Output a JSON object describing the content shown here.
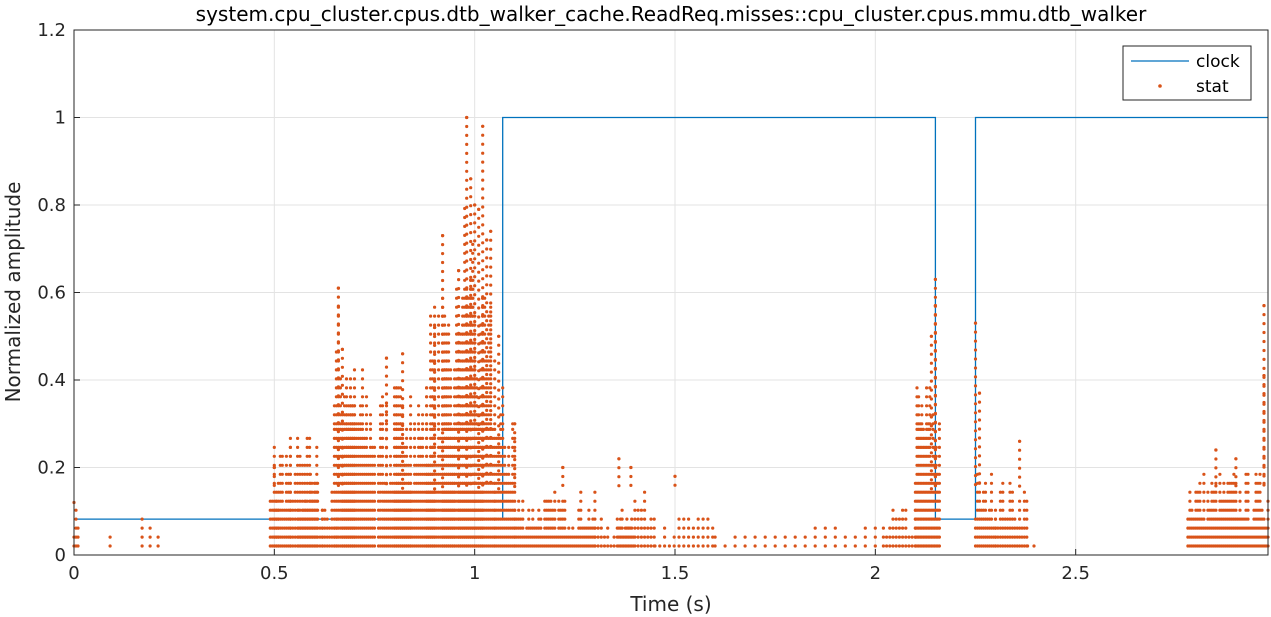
{
  "chart_data": {
    "type": "line",
    "title": "system.cpu_cluster.cpus.dtb_walker_cache.ReadReq.misses::cpu_cluster.cpus.mmu.dtb_walker",
    "xlabel": "Time (s)",
    "ylabel": "Normalized amplitude",
    "xlim": [
      0,
      2.98
    ],
    "ylim": [
      0,
      1.2
    ],
    "xticks": [
      0,
      0.5,
      1,
      1.5,
      2,
      2.5
    ],
    "xtick_labels": [
      "0",
      "0.5",
      "1",
      "1.5",
      "2",
      "2.5"
    ],
    "yticks": [
      0,
      0.2,
      0.4,
      0.6,
      0.8,
      1,
      1.2
    ],
    "ytick_labels": [
      "0",
      "0.2",
      "0.4",
      "0.6",
      "0.8",
      "1",
      "1.2"
    ],
    "grid": true,
    "legend_position": "top-right",
    "colors": {
      "clock": "#0072bd",
      "stat": "#d95319"
    },
    "series": [
      {
        "name": "clock",
        "style": "step-line",
        "x": [
          0,
          1.07,
          1.07,
          2.15,
          2.15,
          2.25,
          2.25,
          2.98
        ],
        "y": [
          0.082,
          0.082,
          1,
          1,
          0.082,
          0.082,
          1,
          1
        ]
      },
      {
        "name": "stat",
        "style": "dots",
        "levels": [
          0.0205,
          0.041,
          0.0615,
          0.082,
          0.1025,
          0.123,
          0.1435,
          0.164,
          0.1845,
          0.205,
          0.2255,
          0.246,
          0.2665,
          0.287
        ],
        "clusters": [
          {
            "x": [
              0.0,
              0.01
            ],
            "step": 0.005,
            "max": 0.123
          },
          {
            "x": [
              0.09,
              0.09
            ],
            "step": 0.005,
            "max": 0.1
          },
          {
            "x": [
              0.17,
              0.21
            ],
            "step": 0.02,
            "max": 0.1
          },
          {
            "x": [
              0.49,
              0.51
            ],
            "step": 0.005,
            "max": 0.16
          },
          {
            "x": [
              0.5,
              0.54
            ],
            "step": 0.005,
            "max": 0.29
          },
          {
            "x": [
              0.54,
              0.61
            ],
            "step": 0.006,
            "max": 0.29
          },
          {
            "x": [
              0.56,
              0.62
            ],
            "step": 0.006,
            "max": 0.2
          },
          {
            "x": [
              0.62,
              0.66
            ],
            "step": 0.006,
            "max": 0.16
          },
          {
            "x": [
              0.65,
              0.7
            ],
            "step": 0.005,
            "max": 0.61
          },
          {
            "x": [
              0.67,
              0.75
            ],
            "step": 0.005,
            "max": 0.45
          },
          {
            "x": [
              0.76,
              0.84
            ],
            "step": 0.005,
            "max": 0.4
          },
          {
            "x": [
              0.8,
              0.9
            ],
            "step": 0.005,
            "max": 0.42
          },
          {
            "x": [
              0.88,
              0.95
            ],
            "step": 0.005,
            "max": 0.6
          },
          {
            "x": [
              0.92,
              1.02
            ],
            "step": 0.005,
            "max": 0.65
          },
          {
            "x": [
              0.96,
              1.0
            ],
            "step": 0.005,
            "max": 0.86
          },
          {
            "x": [
              1.0,
              1.05
            ],
            "step": 0.005,
            "max": 0.6
          },
          {
            "x": [
              1.05,
              1.1
            ],
            "step": 0.005,
            "max": 0.4
          },
          {
            "x": [
              1.1,
              1.3
            ],
            "step": 0.005,
            "max": 0.15
          },
          {
            "x": [
              1.3,
              1.4
            ],
            "step": 0.008,
            "max": 0.1
          },
          {
            "x": [
              1.36,
              1.45
            ],
            "step": 0.008,
            "max": 0.16
          },
          {
            "x": [
              1.45,
              1.6
            ],
            "step": 0.012,
            "max": 0.1
          },
          {
            "x": [
              1.6,
              2.0
            ],
            "step": 0.025,
            "max": 0.07
          },
          {
            "x": [
              2.02,
              2.1
            ],
            "step": 0.008,
            "max": 0.12
          },
          {
            "x": [
              2.1,
              2.16
            ],
            "step": 0.004,
            "max": 0.42
          },
          {
            "x": [
              2.25,
              2.3
            ],
            "step": 0.005,
            "max": 0.2
          },
          {
            "x": [
              2.3,
              2.38
            ],
            "step": 0.006,
            "max": 0.18
          },
          {
            "x": [
              2.38,
              2.4
            ],
            "step": 0.008,
            "max": 0.04
          },
          {
            "x": [
              2.44,
              2.9
            ],
            "step": 0.045,
            "max": 0.02
          },
          {
            "x": [
              2.78,
              2.98
            ],
            "step": 0.005,
            "max": 0.2
          }
        ],
        "peaks": [
          {
            "x": 0.0,
            "y": 0.12
          },
          {
            "x": 0.5,
            "y": 0.2
          },
          {
            "x": 0.66,
            "y": 0.61
          },
          {
            "x": 0.67,
            "y": 0.47
          },
          {
            "x": 0.78,
            "y": 0.45
          },
          {
            "x": 0.82,
            "y": 0.46
          },
          {
            "x": 0.9,
            "y": 0.52
          },
          {
            "x": 0.92,
            "y": 0.73
          },
          {
            "x": 0.96,
            "y": 0.65
          },
          {
            "x": 0.98,
            "y": 1.0
          },
          {
            "x": 0.99,
            "y": 0.86
          },
          {
            "x": 1.0,
            "y": 0.8
          },
          {
            "x": 1.02,
            "y": 0.98
          },
          {
            "x": 1.01,
            "y": 0.79
          },
          {
            "x": 1.03,
            "y": 0.72
          },
          {
            "x": 1.04,
            "y": 0.74
          },
          {
            "x": 1.06,
            "y": 0.5
          },
          {
            "x": 1.1,
            "y": 0.3
          },
          {
            "x": 1.22,
            "y": 0.2
          },
          {
            "x": 1.36,
            "y": 0.22
          },
          {
            "x": 1.39,
            "y": 0.2
          },
          {
            "x": 1.5,
            "y": 0.18
          },
          {
            "x": 2.14,
            "y": 0.5
          },
          {
            "x": 2.15,
            "y": 0.63
          },
          {
            "x": 2.15,
            "y": 0.57
          },
          {
            "x": 2.25,
            "y": 0.53
          },
          {
            "x": 2.26,
            "y": 0.37
          },
          {
            "x": 2.36,
            "y": 0.26
          },
          {
            "x": 2.85,
            "y": 0.24
          },
          {
            "x": 2.9,
            "y": 0.22
          },
          {
            "x": 2.97,
            "y": 0.57
          },
          {
            "x": 2.97,
            "y": 0.41
          }
        ]
      }
    ]
  }
}
